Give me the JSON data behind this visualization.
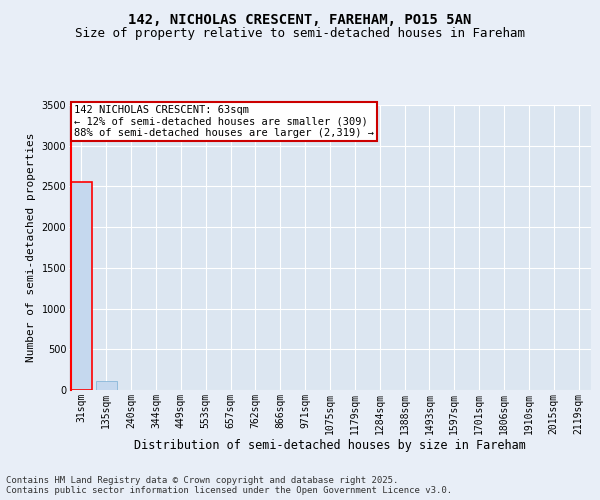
{
  "title": "142, NICHOLAS CRESCENT, FAREHAM, PO15 5AN",
  "subtitle": "Size of property relative to semi-detached houses in Fareham",
  "xlabel": "Distribution of semi-detached houses by size in Fareham",
  "ylabel": "Number of semi-detached properties",
  "annotation_line1": "142 NICHOLAS CRESCENT: 63sqm",
  "annotation_line2": "← 12% of semi-detached houses are smaller (309)",
  "annotation_line3": "88% of semi-detached houses are larger (2,319) →",
  "footer_line1": "Contains HM Land Registry data © Crown copyright and database right 2025.",
  "footer_line2": "Contains public sector information licensed under the Open Government Licence v3.0.",
  "property_size": 63,
  "property_bin_index": 0,
  "bin_labels": [
    "31sqm",
    "135sqm",
    "240sqm",
    "344sqm",
    "449sqm",
    "553sqm",
    "657sqm",
    "762sqm",
    "866sqm",
    "971sqm",
    "1075sqm",
    "1179sqm",
    "1284sqm",
    "1388sqm",
    "1493sqm",
    "1597sqm",
    "1701sqm",
    "1806sqm",
    "1910sqm",
    "2015sqm",
    "2119sqm"
  ],
  "bar_values": [
    2550,
    110,
    5,
    2,
    1,
    1,
    1,
    0,
    0,
    0,
    0,
    0,
    0,
    0,
    0,
    0,
    0,
    0,
    0,
    0,
    0
  ],
  "bar_color": "#c5d8ee",
  "bar_edge_color": "#7bafd4",
  "highlight_bar_index": 0,
  "highlight_color_fill": "#c5d8ee",
  "highlight_color_edge": "#ff0000",
  "ylim": [
    0,
    3500
  ],
  "yticks": [
    0,
    500,
    1000,
    1500,
    2000,
    2500,
    3000,
    3500
  ],
  "bg_color": "#e8eef7",
  "plot_bg_color": "#dce6f1",
  "grid_color": "#ffffff",
  "annotation_box_color": "#cc0000",
  "annotation_bg": "#ffffff",
  "title_fontsize": 10,
  "subtitle_fontsize": 9,
  "ylabel_fontsize": 8,
  "xlabel_fontsize": 8.5,
  "tick_fontsize": 7,
  "annotation_fontsize": 7.5,
  "footer_fontsize": 6.5
}
